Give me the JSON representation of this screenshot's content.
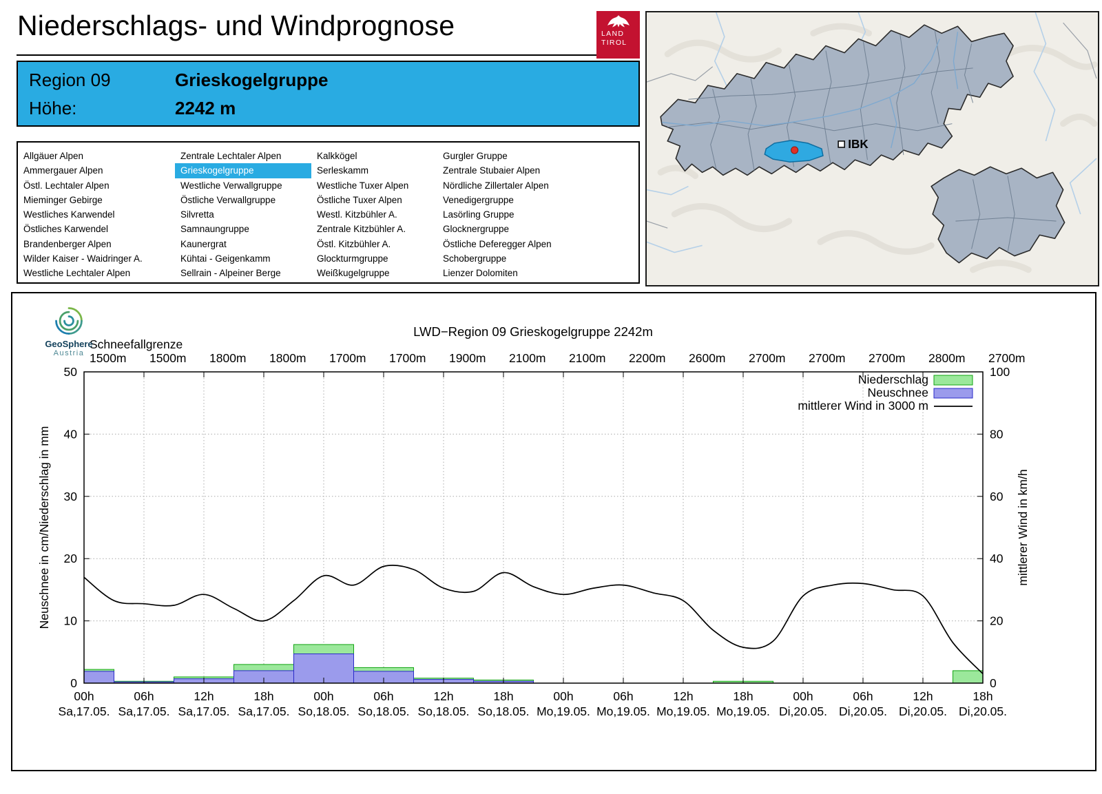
{
  "page": {
    "title": "Niederschlags- und Windprognose"
  },
  "logo": {
    "line1": "LAND",
    "line2": "TIROL"
  },
  "region_box": {
    "region_label": "Region 09",
    "region_name": "Grieskogelgruppe",
    "altitude_label": "Höhe:",
    "altitude_value": "2242 m"
  },
  "map": {
    "marker_label": "IBK"
  },
  "region_list": {
    "selected": "Grieskogelgruppe",
    "columns": [
      [
        "Allgäuer Alpen",
        "Ammergauer Alpen",
        "Östl. Lechtaler Alpen",
        "Mieminger Gebirge",
        "Westliches Karwendel",
        "Östliches Karwendel",
        "Brandenberger Alpen",
        "Wilder Kaiser - Waidringer A.",
        "Westliche Lechtaler Alpen"
      ],
      [
        "Zentrale Lechtaler Alpen",
        "Grieskogelgruppe",
        "Westliche Verwallgruppe",
        "Östliche Verwallgruppe",
        "Silvretta",
        "Samnaungruppe",
        "Kaunergrat",
        "Kühtai - Geigenkamm",
        "Sellrain - Alpeiner Berge"
      ],
      [
        "Kalkkögel",
        "Serleskamm",
        "Westliche Tuxer Alpen",
        "Östliche Tuxer Alpen",
        "Westl. Kitzbühler A.",
        "Zentrale Kitzbühler A.",
        "Östl. Kitzbühler A.",
        "Glockturmgruppe",
        "Weißkugelgruppe"
      ],
      [
        "Gurgler Gruppe",
        "Zentrale Stubaier Alpen",
        "Nördliche Zillertaler Alpen",
        "Venedigergruppe",
        "Lasörling Gruppe",
        "Glocknergruppe",
        "Östliche Deferegger Alpen",
        "Schobergruppe",
        "Lienzer Dolomiten"
      ]
    ]
  },
  "geosphere": {
    "name": "GeoSphere",
    "sub": "Austria"
  },
  "colors": {
    "accent_blue": "#29abe2",
    "logo_red": "#c31230",
    "map_region_fill": "#a8b4c4",
    "selected_region_fill": "#2fa9e1",
    "precip_green": "#9be89b",
    "snow_blue": "#9b9bec"
  },
  "chart_data": {
    "type": "bar",
    "title": "LWD−Region 09 Grieskogelgruppe 2242m",
    "snowline": {
      "label": "Schneefallgrenze",
      "values": [
        "1500m",
        "1500m",
        "1800m",
        "1800m",
        "1700m",
        "1700m",
        "1900m",
        "2100m",
        "2100m",
        "2200m",
        "2600m",
        "2700m",
        "2700m",
        "2700m",
        "2800m",
        "2700m"
      ]
    },
    "x_ticks": [
      {
        "hour": "00h",
        "date": "Sa,17.05."
      },
      {
        "hour": "06h",
        "date": "Sa,17.05."
      },
      {
        "hour": "12h",
        "date": "Sa,17.05."
      },
      {
        "hour": "18h",
        "date": "Sa,17.05."
      },
      {
        "hour": "00h",
        "date": "So,18.05."
      },
      {
        "hour": "06h",
        "date": "So,18.05."
      },
      {
        "hour": "12h",
        "date": "So,18.05."
      },
      {
        "hour": "18h",
        "date": "So,18.05."
      },
      {
        "hour": "00h",
        "date": "Mo,19.05."
      },
      {
        "hour": "06h",
        "date": "Mo,19.05."
      },
      {
        "hour": "12h",
        "date": "Mo,19.05."
      },
      {
        "hour": "18h",
        "date": "Mo,19.05."
      },
      {
        "hour": "00h",
        "date": "Di,20.05."
      },
      {
        "hour": "06h",
        "date": "Di,20.05."
      },
      {
        "hour": "12h",
        "date": "Di,20.05."
      },
      {
        "hour": "18h",
        "date": "Di,20.05."
      }
    ],
    "ylabel_left": "Neuschnee in cm/Niederschlag in mm",
    "ylabel_right": "mittlerer Wind in km/h",
    "ylim_left": [
      0,
      50
    ],
    "ylim_right": [
      0,
      100
    ],
    "yticks_left": [
      0,
      10,
      20,
      30,
      40,
      50
    ],
    "yticks_right": [
      0,
      20,
      40,
      60,
      80,
      100
    ],
    "grid": true,
    "legend_position": "top-right",
    "legend": [
      {
        "label": "Niederschlag",
        "type": "box",
        "fill": "#9be89b",
        "stroke": "#12a312"
      },
      {
        "label": "Neuschnee",
        "type": "box",
        "fill": "#9b9bec",
        "stroke": "#2a2ac8"
      },
      {
        "label": "mittlerer Wind in 3000 m",
        "type": "line",
        "stroke": "#000000"
      }
    ],
    "series": {
      "niederschlag_mm": [
        2.2,
        0.3,
        1.0,
        3.0,
        6.2,
        2.5,
        0.8,
        0.5,
        0,
        0,
        0,
        0.3,
        0,
        0,
        0,
        2.0
      ],
      "neuschnee_cm": [
        1.9,
        0.2,
        0.7,
        2.0,
        4.7,
        1.9,
        0.6,
        0.3,
        0,
        0,
        0,
        0,
        0,
        0,
        0,
        0
      ],
      "wind_kmh": {
        "hours": [
          0,
          3,
          6,
          9,
          12,
          15,
          18,
          21,
          24,
          27,
          30,
          33,
          36,
          39,
          42,
          45,
          48,
          51,
          54,
          57,
          60,
          63,
          66,
          69,
          72,
          75,
          78,
          81,
          84,
          87,
          90
        ],
        "values": [
          34,
          26.5,
          25.5,
          25,
          28.5,
          24,
          20,
          26.5,
          34.5,
          31.5,
          37.5,
          36.5,
          30.5,
          29.5,
          35.5,
          31,
          28.5,
          30.5,
          31.5,
          29,
          26.5,
          17,
          11.5,
          13.5,
          28,
          31.5,
          32,
          30,
          28,
          13,
          3
        ]
      }
    }
  }
}
